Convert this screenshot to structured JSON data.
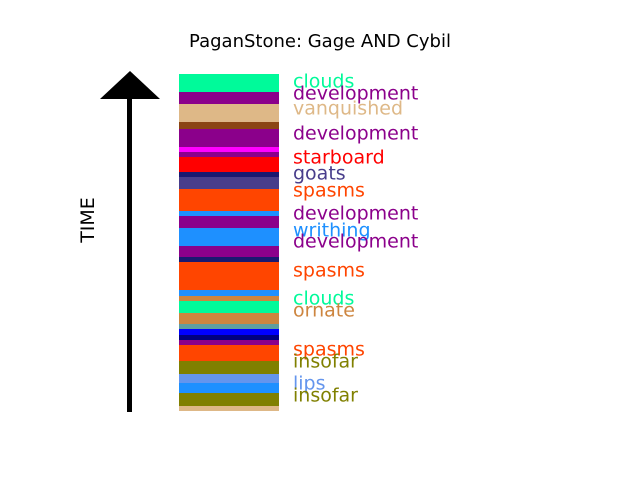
{
  "title": "PaganStone: Gage AND Cybil",
  "axis_label": "TIME",
  "chart_data": {
    "type": "stacked-strata",
    "bands": [
      {
        "color": "#00fa9a",
        "weight": 5.0
      },
      {
        "color": "#8b008b",
        "weight": 3.5
      },
      {
        "color": "#deb887",
        "weight": 5.0
      },
      {
        "color": "#8b4513",
        "weight": 2.0
      },
      {
        "color": "#8b008b",
        "weight": 5.0
      },
      {
        "color": "#ff00ff",
        "weight": 1.5
      },
      {
        "color": "#8b008b",
        "weight": 1.5
      },
      {
        "color": "#ff0000",
        "weight": 4.0
      },
      {
        "color": "#191970",
        "weight": 1.5
      },
      {
        "color": "#483d8b",
        "weight": 3.5
      },
      {
        "color": "#ff4500",
        "weight": 6.0
      },
      {
        "color": "#1e90ff",
        "weight": 1.5
      },
      {
        "color": "#8b008b",
        "weight": 3.5
      },
      {
        "color": "#1e90ff",
        "weight": 5.0
      },
      {
        "color": "#8b008b",
        "weight": 3.0
      },
      {
        "color": "#191970",
        "weight": 1.5
      },
      {
        "color": "#ff4500",
        "weight": 8.0
      },
      {
        "color": "#1e90ff",
        "weight": 1.5
      },
      {
        "color": "#cd853f",
        "weight": 1.5
      },
      {
        "color": "#00fa9a",
        "weight": 3.5
      },
      {
        "color": "#cd853f",
        "weight": 3.0
      },
      {
        "color": "#5f9ea0",
        "weight": 1.5
      },
      {
        "color": "#0000ff",
        "weight": 1.5
      },
      {
        "color": "#000080",
        "weight": 1.5
      },
      {
        "color": "#8b008b",
        "weight": 1.5
      },
      {
        "color": "#ff4500",
        "weight": 4.5
      },
      {
        "color": "#808000",
        "weight": 3.5
      },
      {
        "color": "#6495ed",
        "weight": 2.5
      },
      {
        "color": "#1e90ff",
        "weight": 3.0
      },
      {
        "color": "#808000",
        "weight": 3.5
      },
      {
        "color": "#deb887",
        "weight": 1.5
      }
    ],
    "labels": [
      {
        "text": "clouds",
        "color": "#00fa9a",
        "level": 0.975
      },
      {
        "text": "development",
        "color": "#8b008b",
        "level": 0.94
      },
      {
        "text": "vanquished",
        "color": "#deb887",
        "level": 0.895
      },
      {
        "text": "development",
        "color": "#8b008b",
        "level": 0.822
      },
      {
        "text": "starboard",
        "color": "#ff0000",
        "level": 0.752
      },
      {
        "text": "goats",
        "color": "#483d8b",
        "level": 0.703
      },
      {
        "text": "spasms",
        "color": "#ff4500",
        "level": 0.654
      },
      {
        "text": "development",
        "color": "#8b008b",
        "level": 0.584
      },
      {
        "text": "writhing",
        "color": "#1e90ff",
        "level": 0.533
      },
      {
        "text": "development",
        "color": "#8b008b",
        "level": 0.501
      },
      {
        "text": "spasms",
        "color": "#ff4500",
        "level": 0.415
      },
      {
        "text": "clouds",
        "color": "#00fa9a",
        "level": 0.332
      },
      {
        "text": "ornate",
        "color": "#cd853f",
        "level": 0.297
      },
      {
        "text": "spasms",
        "color": "#ff4500",
        "level": 0.18
      },
      {
        "text": "insofar",
        "color": "#808000",
        "level": 0.145
      },
      {
        "text": "lips",
        "color": "#6495ed",
        "level": 0.08
      },
      {
        "text": "insofar",
        "color": "#808000",
        "level": 0.045
      }
    ]
  }
}
